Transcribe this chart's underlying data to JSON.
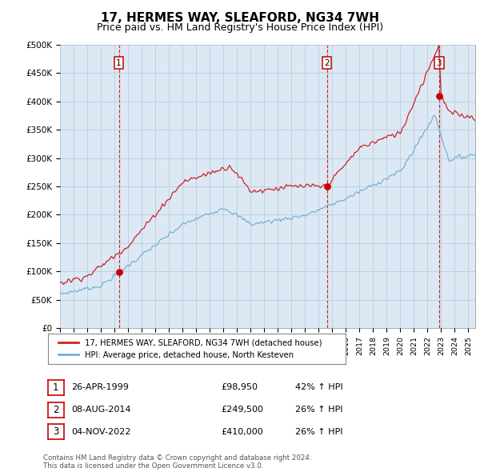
{
  "title": "17, HERMES WAY, SLEAFORD, NG34 7WH",
  "subtitle": "Price paid vs. HM Land Registry's House Price Index (HPI)",
  "ylabel_ticks": [
    "£0",
    "£50K",
    "£100K",
    "£150K",
    "£200K",
    "£250K",
    "£300K",
    "£350K",
    "£400K",
    "£450K",
    "£500K"
  ],
  "ytick_values": [
    0,
    50000,
    100000,
    150000,
    200000,
    250000,
    300000,
    350000,
    400000,
    450000,
    500000
  ],
  "xlim_start": 1995.0,
  "xlim_end": 2025.5,
  "ylim_min": 0,
  "ylim_max": 500000,
  "sale_dates": [
    1999.32,
    2014.6,
    2022.84
  ],
  "sale_prices": [
    98950,
    249500,
    410000
  ],
  "sale_labels": [
    "1",
    "2",
    "3"
  ],
  "vline_color": "#cc0000",
  "dot_color": "#cc0000",
  "hpi_line_color": "#7bafd4",
  "price_line_color": "#cc2222",
  "plot_bg_color": "#dce9f5",
  "legend_entries": [
    "17, HERMES WAY, SLEAFORD, NG34 7WH (detached house)",
    "HPI: Average price, detached house, North Kesteven"
  ],
  "table_data": [
    [
      "1",
      "26-APR-1999",
      "£98,950",
      "42% ↑ HPI"
    ],
    [
      "2",
      "08-AUG-2014",
      "£249,500",
      "26% ↑ HPI"
    ],
    [
      "3",
      "04-NOV-2022",
      "£410,000",
      "26% ↑ HPI"
    ]
  ],
  "footnote": "Contains HM Land Registry data © Crown copyright and database right 2024.\nThis data is licensed under the Open Government Licence v3.0.",
  "background_color": "#ffffff",
  "grid_color": "#bbccdd",
  "title_fontsize": 11,
  "subtitle_fontsize": 9
}
